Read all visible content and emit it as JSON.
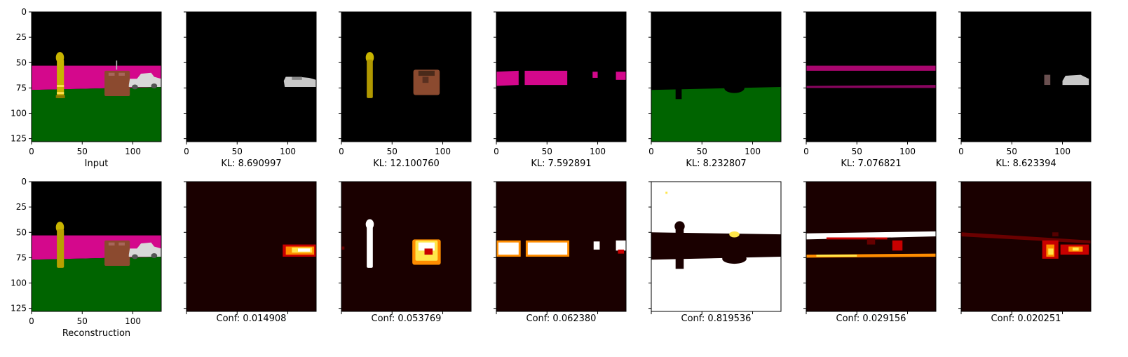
{
  "figure": {
    "x_ticks": [
      "0",
      "50",
      "100"
    ],
    "y_ticks": [
      "0",
      "25",
      "50",
      "75",
      "100",
      "125"
    ],
    "top_row": {
      "panels": [
        {
          "label": "Input",
          "kind": "input"
        },
        {
          "label": "KL: 8.690997",
          "kind": "slot1"
        },
        {
          "label": "KL: 12.100760",
          "kind": "slot2"
        },
        {
          "label": "KL: 7.592891",
          "kind": "slot3"
        },
        {
          "label": "KL: 8.232807",
          "kind": "slot4"
        },
        {
          "label": "KL: 7.076821",
          "kind": "slot5"
        },
        {
          "label": "KL: 8.623394",
          "kind": "slot6"
        }
      ]
    },
    "bottom_row": {
      "panels": [
        {
          "label": "Reconstruction",
          "kind": "recon"
        },
        {
          "label": "Conf: 0.014908",
          "kind": "conf1"
        },
        {
          "label": "Conf: 0.053769",
          "kind": "conf2"
        },
        {
          "label": "Conf: 0.062380",
          "kind": "conf3"
        },
        {
          "label": "Conf: 0.819536",
          "kind": "conf4"
        },
        {
          "label": "Conf: 0.029156",
          "kind": "conf5"
        },
        {
          "label": "Conf: 0.020251",
          "kind": "conf6"
        }
      ]
    },
    "colors": {
      "sky": "#000000",
      "wall_magenta": "#d4088c",
      "floor_green": "#006400",
      "object_yellow": "#c8b400",
      "object_brown": "#8b4a2f",
      "object_silver": "#d8d8d8",
      "heat_dark": "#1a0000",
      "heat_red": "#c80000",
      "heat_orange": "#ff8c00",
      "heat_yellow": "#ffe64a",
      "heat_white": "#ffffff"
    }
  }
}
